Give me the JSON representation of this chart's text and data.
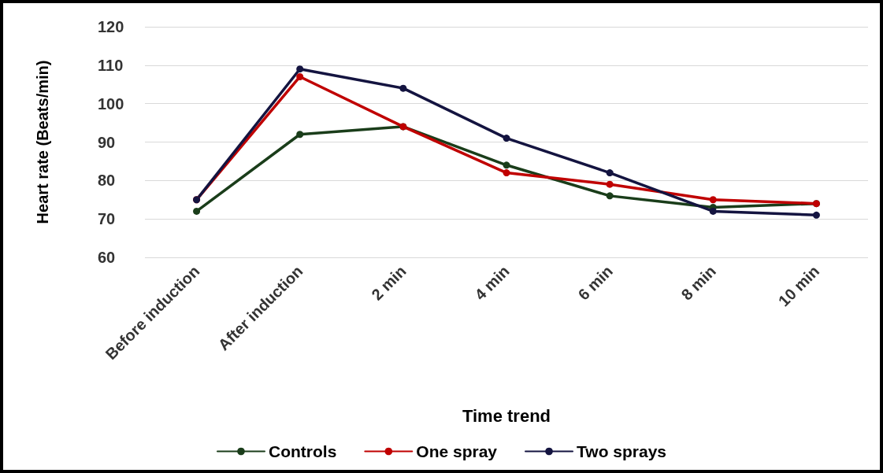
{
  "chart_data": {
    "type": "line",
    "xlabel": "Time trend",
    "ylabel": "Heart rate (Beats/min)",
    "categories": [
      "Before induction",
      "After induction",
      "2 min",
      "4 min",
      "6 min",
      "8 min",
      "10 min"
    ],
    "series": [
      {
        "name": "Controls",
        "color": "#1a3d1a",
        "values": [
          72,
          92,
          94,
          84,
          76,
          73,
          74
        ]
      },
      {
        "name": "One spray",
        "color": "#c00000",
        "values": [
          75,
          107,
          94,
          82,
          79,
          75,
          74
        ]
      },
      {
        "name": "Two sprays",
        "color": "#141440",
        "values": [
          75,
          109,
          104,
          91,
          82,
          72,
          71
        ]
      }
    ],
    "ylim": [
      60,
      120
    ],
    "yticks": [
      60,
      70,
      80,
      90,
      100,
      110,
      120
    ],
    "grid": "y",
    "legend": "bottom",
    "marker": "circle",
    "line_style": "solid"
  }
}
